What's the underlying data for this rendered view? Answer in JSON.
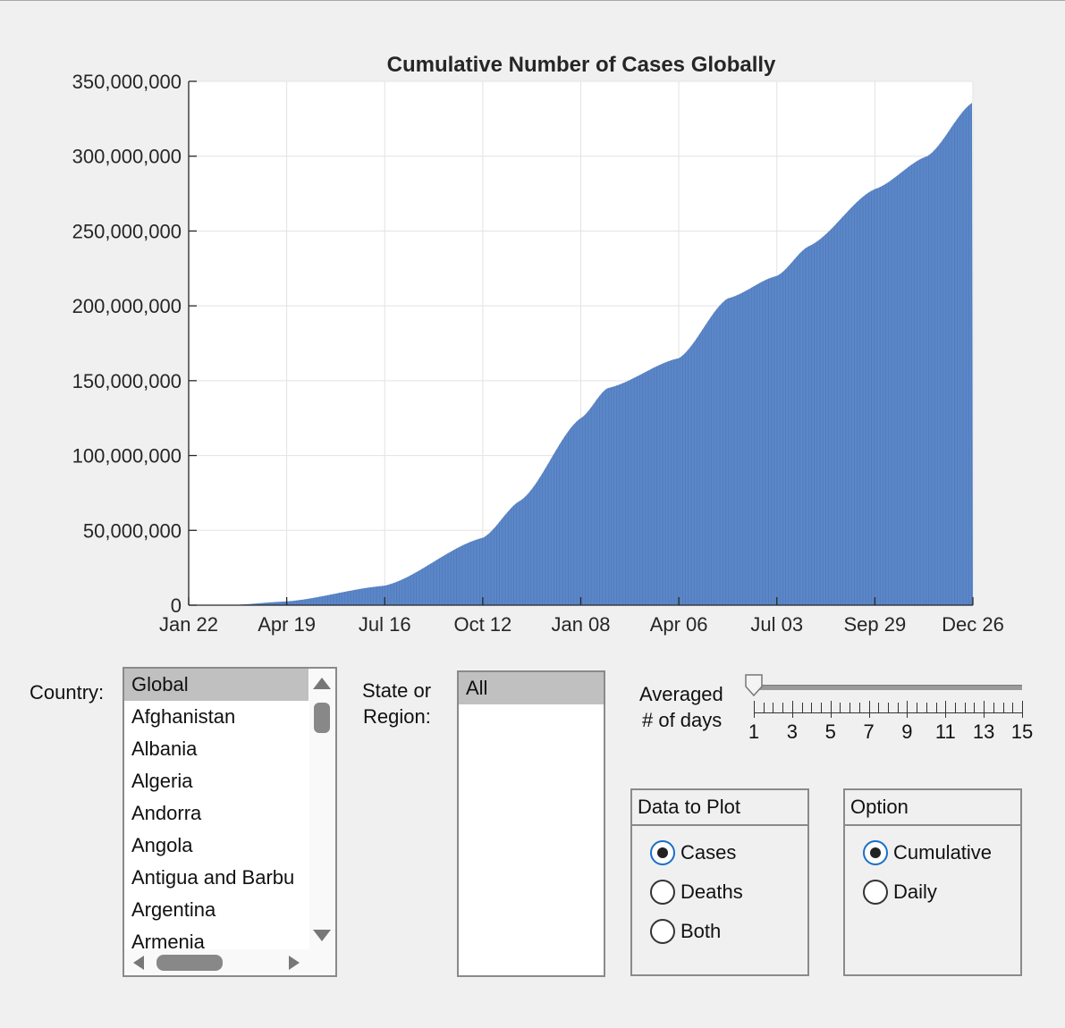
{
  "chart_data": {
    "type": "area",
    "title": "Cumulative Number of Cases Globally",
    "xlabel": "",
    "ylabel": "",
    "x_ticks": [
      "Jan 22",
      "Apr 19",
      "Jul 16",
      "Oct 12",
      "Jan 08",
      "Apr 06",
      "Jul 03",
      "Sep 29",
      "Dec 26"
    ],
    "y_ticks": [
      "0",
      "50,000,000",
      "100,000,000",
      "150,000,000",
      "200,000,000",
      "250,000,000",
      "300,000,000",
      "350,000,000"
    ],
    "ylim": [
      0,
      350000000
    ],
    "grid": true,
    "color": "#5b87c8",
    "series": [
      {
        "x": [
          "Jan 22",
          "Mar 01",
          "Apr 19",
          "Jul 16",
          "Oct 12",
          "Nov 15",
          "Jan 08",
          "Feb 01",
          "Apr 06",
          "May 20",
          "Jul 03",
          "Aug 01",
          "Sep 29",
          "Nov 15",
          "Dec 26"
        ],
        "values": [
          0,
          100000,
          2500000,
          13000000,
          45000000,
          70000000,
          125000000,
          145000000,
          165000000,
          205000000,
          220000000,
          240000000,
          278000000,
          300000000,
          336000000
        ]
      }
    ]
  },
  "controls": {
    "country_label": "Country:",
    "countries": [
      "Global",
      "Afghanistan",
      "Albania",
      "Algeria",
      "Andorra",
      "Angola",
      "Antigua and Barbu",
      "Argentina",
      "Armenia"
    ],
    "country_selected": "Global",
    "region_label_line1": "State or",
    "region_label_line2": "Region:",
    "regions": [
      "All"
    ],
    "region_selected": "All",
    "avg_label_line1": "Averaged",
    "avg_label_line2": "# of days",
    "slider_value": 1,
    "slider_min": 1,
    "slider_max": 15,
    "slider_labels": [
      "1",
      "3",
      "5",
      "7",
      "9",
      "11",
      "13",
      "15"
    ],
    "data_panel": {
      "title": "Data to Plot",
      "options": [
        "Cases",
        "Deaths",
        "Both"
      ],
      "selected": "Cases"
    },
    "option_panel": {
      "title": "Option",
      "options": [
        "Cumulative",
        "Daily"
      ],
      "selected": "Cumulative"
    }
  }
}
